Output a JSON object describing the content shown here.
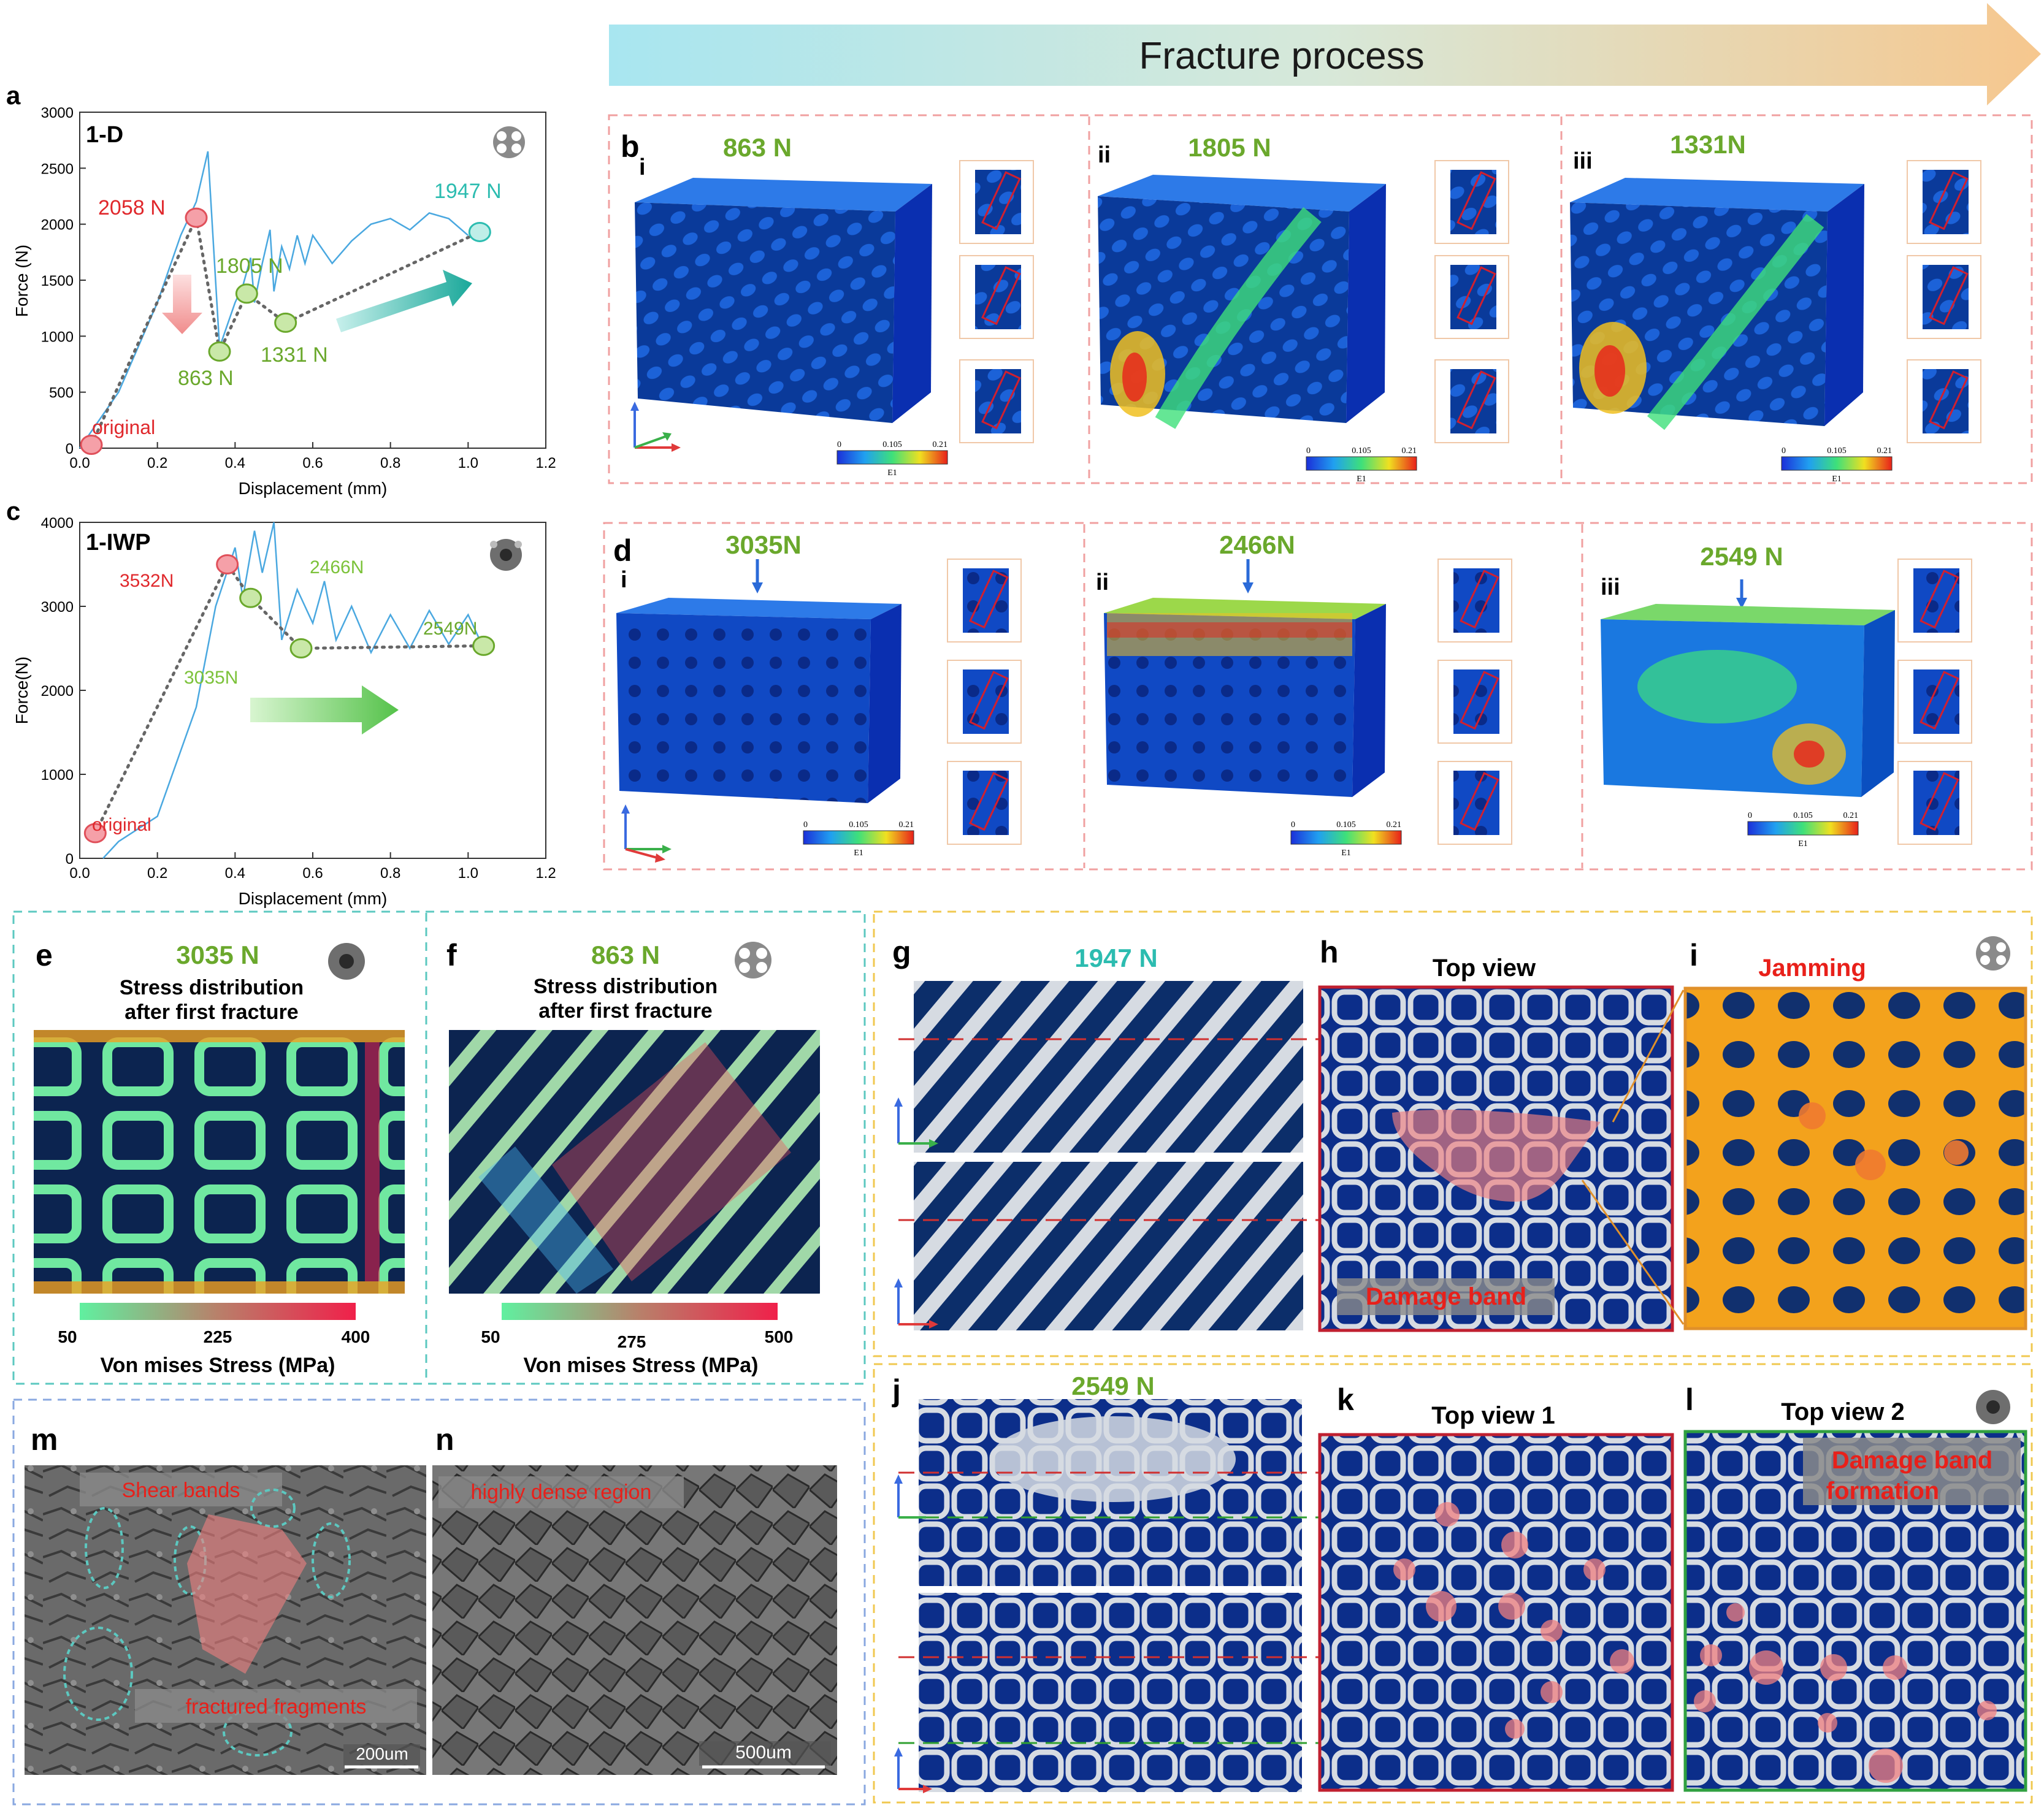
{
  "panels": {
    "a": "a",
    "b": "b",
    "c": "c",
    "d": "d",
    "e": "e",
    "f": "f",
    "g": "g",
    "h": "h",
    "i": "i",
    "j": "j",
    "k": "k",
    "l": "l",
    "m": "m",
    "n": "n"
  },
  "roman": [
    "i",
    "ii",
    "iii"
  ],
  "header": {
    "title": "Fracture process"
  },
  "chart_a": {
    "sample": "1-D",
    "ylabel": "Force (N)",
    "xlabel": "Displacement (mm)",
    "yticks": [
      "0",
      "500",
      "1000",
      "1500",
      "2000",
      "2500",
      "3000"
    ],
    "xticks": [
      "0.0",
      "0.2",
      "0.4",
      "0.6",
      "0.8",
      "1.0",
      "1.2"
    ],
    "labels": {
      "p2058": "2058 N",
      "p1805": "1805 N",
      "p863": "863 N",
      "p1331": "1331 N",
      "p1947": "1947 N",
      "original": "original"
    }
  },
  "chart_c": {
    "sample": "1-IWP",
    "ylabel": "Force(N)",
    "xlabel": "Displacement (mm)",
    "yticks": [
      "0",
      "1000",
      "2000",
      "3000",
      "4000"
    ],
    "xticks": [
      "0.0",
      "0.2",
      "0.4",
      "0.6",
      "0.8",
      "1.0",
      "1.2"
    ],
    "labels": {
      "p3532": "3532N",
      "p2466": "2466N",
      "p3035": "3035N",
      "p2549": "2549N",
      "original": "original"
    }
  },
  "panel_b": {
    "forces": [
      "863 N",
      "1805 N",
      "1331N"
    ]
  },
  "panel_d": {
    "forces": [
      "3035N",
      "2466N",
      "2549 N"
    ]
  },
  "colorbar_fe": {
    "min": "0",
    "mid": "0.105",
    "max": "0.21",
    "label": "E1"
  },
  "panel_e": {
    "force": "3035 N",
    "line1": "Stress distribution",
    "line2": "after first fracture",
    "cb_min": "50",
    "cb_mid": "225",
    "cb_max": "400",
    "cb_label": "Von mises Stress (MPa)"
  },
  "panel_f": {
    "force": "863 N",
    "line1": "Stress distribution",
    "line2": "after first fracture",
    "cb_min": "50",
    "cb_mid": "275",
    "cb_max": "500",
    "cb_label": "Von mises Stress (MPa)"
  },
  "panel_g": {
    "force": "1947 N"
  },
  "panel_h": {
    "title": "Top view",
    "note": "Damage band"
  },
  "panel_i": {
    "title": "Jamming"
  },
  "panel_j": {
    "force": "2549 N"
  },
  "panel_k": {
    "title": "Top view 1"
  },
  "panel_l": {
    "title": "Top view 2",
    "note1": "Damage band",
    "note2": "formation"
  },
  "panel_m": {
    "shear": "Shear bands",
    "fragments": "fractured fragments",
    "scale": "200um"
  },
  "panel_n": {
    "label": "highly dense region",
    "scale": "500um"
  },
  "chart_data": [
    {
      "type": "line",
      "title": "1-D",
      "xlabel": "Displacement (mm)",
      "ylabel": "Force (N)",
      "xlim": [
        0,
        1.2
      ],
      "ylim": [
        0,
        3000
      ],
      "series": [
        {
          "values": [
            [
              0,
              0
            ],
            [
              0.1,
              500
            ],
            [
              0.2,
              1300
            ],
            [
              0.26,
              1900
            ],
            [
              0.3,
              2200
            ],
            [
              0.33,
              2650
            ],
            [
              0.36,
              900
            ],
            [
              0.38,
              1100
            ],
            [
              0.4,
              1300
            ],
            [
              0.42,
              1450
            ],
            [
              0.44,
              1700
            ],
            [
              0.45,
              1300
            ],
            [
              0.47,
              1650
            ],
            [
              0.49,
              1950
            ],
            [
              0.5,
              1400
            ],
            [
              0.52,
              1800
            ],
            [
              0.54,
              1600
            ],
            [
              0.56,
              1900
            ],
            [
              0.58,
              1650
            ],
            [
              0.6,
              1900
            ],
            [
              0.65,
              1650
            ],
            [
              0.7,
              1850
            ],
            [
              0.75,
              2000
            ],
            [
              0.8,
              2050
            ],
            [
              0.85,
              1950
            ],
            [
              0.9,
              2100
            ],
            [
              0.95,
              2050
            ],
            [
              1.0,
              1900
            ]
          ]
        }
      ],
      "annotations": [
        {
          "x": 0.03,
          "y": 30,
          "text": "original"
        },
        {
          "x": 0.3,
          "y": 2058,
          "text": "2058 N"
        },
        {
          "x": 0.36,
          "y": 863,
          "text": "863 N"
        },
        {
          "x": 0.43,
          "y": 1380,
          "text": "1805 N"
        },
        {
          "x": 0.53,
          "y": 1120,
          "text": "1331 N"
        },
        {
          "x": 1.03,
          "y": 1930,
          "text": "1947 N"
        }
      ]
    },
    {
      "type": "line",
      "title": "1-IWP",
      "xlabel": "Displacement (mm)",
      "ylabel": "Force(N)",
      "xlim": [
        0,
        1.2
      ],
      "ylim": [
        0,
        4000
      ],
      "series": [
        {
          "values": [
            [
              0.06,
              0
            ],
            [
              0.1,
              200
            ],
            [
              0.2,
              500
            ],
            [
              0.3,
              1800
            ],
            [
              0.35,
              3000
            ],
            [
              0.4,
              3700
            ],
            [
              0.42,
              3100
            ],
            [
              0.45,
              3900
            ],
            [
              0.47,
              3400
            ],
            [
              0.5,
              4000
            ],
            [
              0.52,
              2600
            ],
            [
              0.56,
              3200
            ],
            [
              0.6,
              2800
            ],
            [
              0.63,
              3300
            ],
            [
              0.66,
              2600
            ],
            [
              0.7,
              3000
            ],
            [
              0.75,
              2450
            ],
            [
              0.8,
              2900
            ],
            [
              0.85,
              2500
            ],
            [
              0.9,
              2950
            ],
            [
              0.95,
              2550
            ],
            [
              1.0,
              2900
            ],
            [
              1.04,
              2500
            ]
          ]
        }
      ],
      "annotations": [
        {
          "x": 0.04,
          "y": 300,
          "text": "original"
        },
        {
          "x": 0.38,
          "y": 3500,
          "text": "3532N"
        },
        {
          "x": 0.44,
          "y": 3100,
          "text": "3035N"
        },
        {
          "x": 0.57,
          "y": 2500,
          "text": "2466N"
        },
        {
          "x": 1.04,
          "y": 2530,
          "text": "2549N"
        }
      ]
    }
  ]
}
